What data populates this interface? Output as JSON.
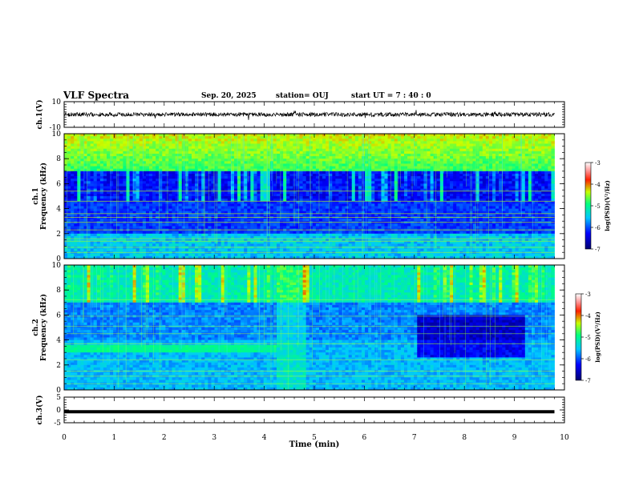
{
  "header": {
    "title": "VLF Spectra",
    "date": "Sep. 20, 2025",
    "station": "station= OUJ",
    "start_ut": "start  UT =   7 : 40 : 0"
  },
  "chart_data": [
    {
      "type": "line",
      "panel": "ch1-waveform",
      "title": "",
      "ylabel": "ch.1(V)",
      "ylim": [
        -10,
        10
      ],
      "yticks": [
        10,
        -10
      ],
      "xlim": [
        0,
        10
      ],
      "baseline": 0,
      "noise_amplitude": 2,
      "data_end_min": 9.8
    },
    {
      "type": "heatmap",
      "panel": "ch1-spectrogram",
      "ylabel_line1": "ch.1",
      "ylabel_line2": "Frequency (kHz)",
      "ylim": [
        0,
        10
      ],
      "yticks": [
        0,
        2,
        4,
        6,
        8,
        10
      ],
      "xlim": [
        0,
        10
      ],
      "data_end_min": 9.8,
      "colorbar": {
        "label": "log(PSD)(V²/Hz)",
        "range": [
          -7,
          -3
        ],
        "ticks": [
          -3,
          -4,
          -5,
          -6,
          -7
        ]
      }
    },
    {
      "type": "heatmap",
      "panel": "ch2-spectrogram",
      "ylabel_line1": "ch.2",
      "ylabel_line2": "Frequency (kHz)",
      "ylim": [
        0,
        10
      ],
      "yticks": [
        0,
        2,
        4,
        6,
        8,
        10
      ],
      "xlim": [
        0,
        10
      ],
      "data_end_min": 9.8,
      "colorbar": {
        "label": "log(PSD)(V²/Hz)",
        "range": [
          -7,
          -3
        ],
        "ticks": [
          -3,
          -4,
          -5,
          -6,
          -7
        ]
      }
    },
    {
      "type": "line",
      "panel": "ch3-waveform",
      "ylabel": "ch.3(V)",
      "ylim": [
        -5,
        5
      ],
      "yticks": [
        5,
        0,
        -5
      ],
      "xlim": [
        0,
        10
      ],
      "baseline": -0.7,
      "data_end_min": 9.8
    }
  ],
  "xaxis": {
    "label": "Time (min)",
    "ticks": [
      0,
      1,
      2,
      3,
      4,
      5,
      6,
      7,
      8,
      9,
      10
    ]
  }
}
